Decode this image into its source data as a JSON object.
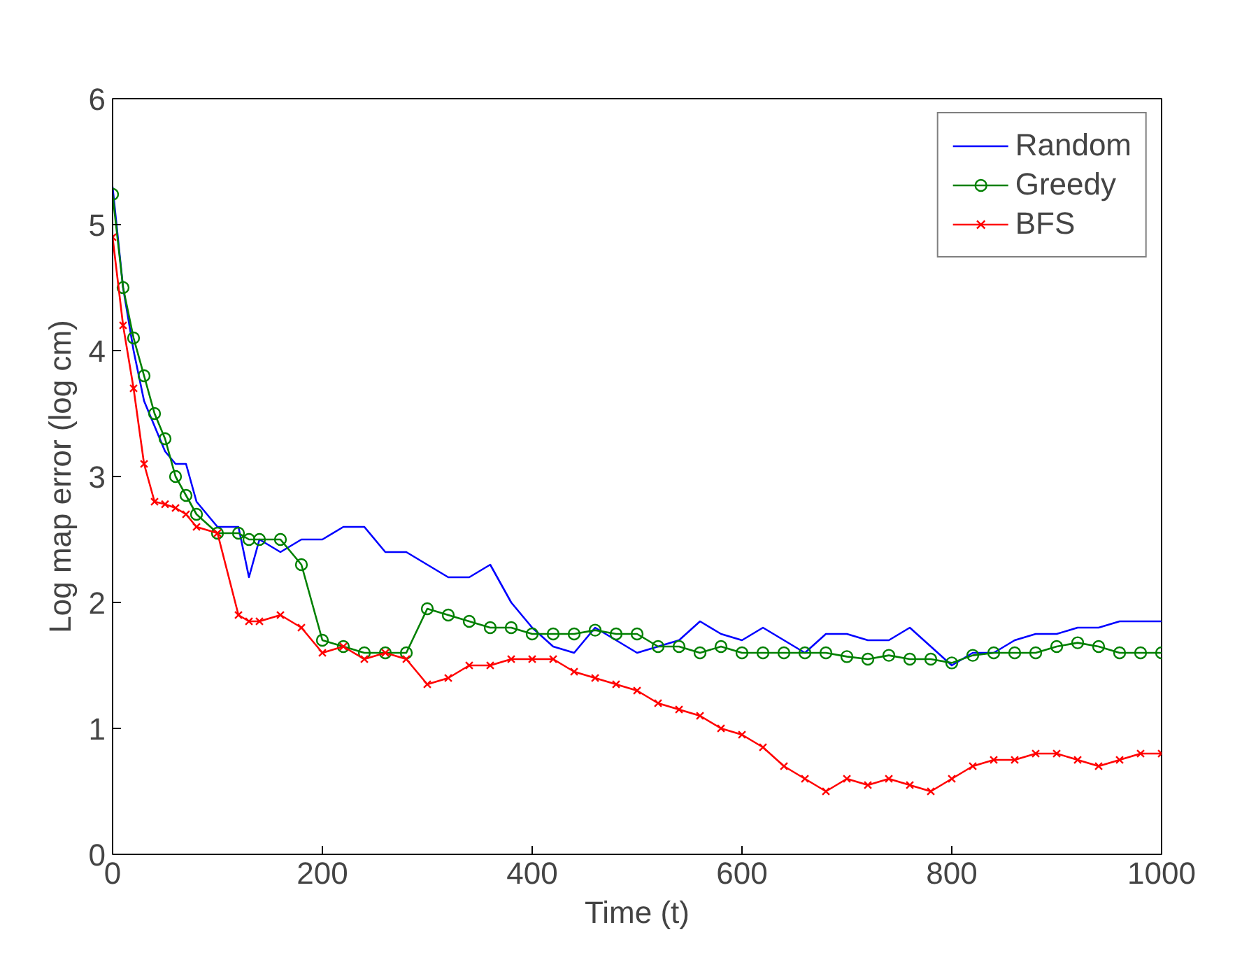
{
  "chart_data": {
    "type": "line",
    "xlabel": "Time (t)",
    "ylabel": "Log map error (log cm)",
    "xlim": [
      0,
      1000
    ],
    "ylim": [
      0,
      6
    ],
    "xticks": [
      0,
      200,
      400,
      600,
      800,
      1000
    ],
    "yticks": [
      0,
      1,
      2,
      3,
      4,
      5,
      6
    ],
    "grid": false,
    "legend": "top right",
    "line_style": "solid",
    "x": [
      0,
      10,
      20,
      30,
      40,
      50,
      60,
      70,
      80,
      100,
      120,
      130,
      140,
      160,
      180,
      200,
      220,
      240,
      260,
      280,
      300,
      320,
      340,
      360,
      380,
      400,
      420,
      440,
      460,
      480,
      500,
      520,
      540,
      560,
      580,
      600,
      620,
      640,
      660,
      680,
      700,
      720,
      740,
      760,
      780,
      800,
      820,
      840,
      860,
      880,
      900,
      920,
      940,
      960,
      980,
      1000
    ],
    "series": [
      {
        "name": "Random",
        "color": "#0000ff",
        "marker": "none",
        "values": [
          5.3,
          4.5,
          4.0,
          3.6,
          3.4,
          3.2,
          3.1,
          3.1,
          2.8,
          2.6,
          2.6,
          2.2,
          2.5,
          2.4,
          2.5,
          2.5,
          2.6,
          2.6,
          2.4,
          2.4,
          2.3,
          2.2,
          2.2,
          2.3,
          2.0,
          1.8,
          1.65,
          1.6,
          1.8,
          1.7,
          1.6,
          1.65,
          1.7,
          1.85,
          1.75,
          1.7,
          1.8,
          1.7,
          1.6,
          1.75,
          1.75,
          1.7,
          1.7,
          1.8,
          1.65,
          1.5,
          1.6,
          1.6,
          1.7,
          1.75,
          1.75,
          1.8,
          1.8,
          1.85,
          1.85,
          1.85
        ]
      },
      {
        "name": "Greedy",
        "color": "#008000",
        "marker": "circle",
        "values": [
          5.24,
          4.5,
          4.1,
          3.8,
          3.5,
          3.3,
          3.0,
          2.85,
          2.7,
          2.55,
          2.55,
          2.5,
          2.5,
          2.5,
          2.3,
          1.7,
          1.65,
          1.6,
          1.6,
          1.6,
          1.95,
          1.9,
          1.85,
          1.8,
          1.8,
          1.75,
          1.75,
          1.75,
          1.78,
          1.75,
          1.75,
          1.65,
          1.65,
          1.6,
          1.65,
          1.6,
          1.6,
          1.6,
          1.6,
          1.6,
          1.57,
          1.55,
          1.58,
          1.55,
          1.55,
          1.52,
          1.58,
          1.6,
          1.6,
          1.6,
          1.65,
          1.68,
          1.65,
          1.6,
          1.6,
          1.6
        ]
      },
      {
        "name": "BFS",
        "color": "#ff0000",
        "marker": "cross",
        "values": [
          4.9,
          4.2,
          3.7,
          3.1,
          2.8,
          2.78,
          2.75,
          2.7,
          2.6,
          2.55,
          1.9,
          1.85,
          1.85,
          1.9,
          1.8,
          1.6,
          1.65,
          1.55,
          1.6,
          1.55,
          1.35,
          1.4,
          1.5,
          1.5,
          1.55,
          1.55,
          1.55,
          1.45,
          1.4,
          1.35,
          1.3,
          1.2,
          1.15,
          1.1,
          1.0,
          0.95,
          0.85,
          0.7,
          0.6,
          0.5,
          0.6,
          0.55,
          0.6,
          0.55,
          0.5,
          0.6,
          0.7,
          0.75,
          0.75,
          0.8,
          0.8,
          0.75,
          0.7,
          0.75,
          0.8,
          0.8
        ]
      }
    ]
  }
}
